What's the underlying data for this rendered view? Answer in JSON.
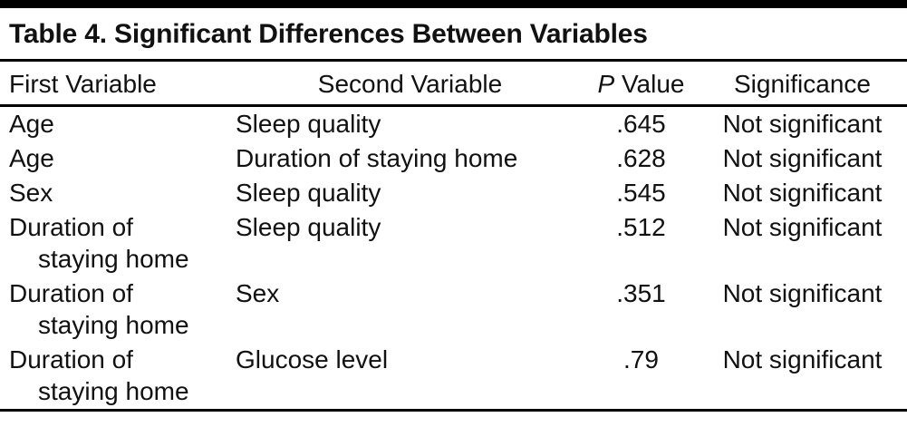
{
  "table": {
    "title": "Table 4. Significant Differences Between Variables",
    "header": {
      "first": "First Variable",
      "second": "Second Variable",
      "p_italic": "P",
      "p_rest": "Value",
      "significance": "Significance"
    },
    "rows": [
      {
        "first": "Age",
        "second": "Sleep quality",
        "p_value": ".645",
        "significance": "Not significant"
      },
      {
        "first": "Age",
        "second": "Duration of staying home",
        "p_value": ".628",
        "significance": "Not significant"
      },
      {
        "first": "Sex",
        "second": "Sleep quality",
        "p_value": ".545",
        "significance": "Not significant"
      },
      {
        "first": "Duration of staying home",
        "second": "Sleep quality",
        "p_value": ".512",
        "significance": "Not significant"
      },
      {
        "first": "Duration of staying home",
        "second": "Sex",
        "p_value": ".351",
        "significance": "Not significant"
      },
      {
        "first": "Duration of staying home",
        "second": "Glucose level",
        "p_value": ".79",
        "significance": "Not significant"
      }
    ],
    "colors": {
      "text": "#111111",
      "rule": "#000000",
      "background": "#ffffff"
    }
  }
}
